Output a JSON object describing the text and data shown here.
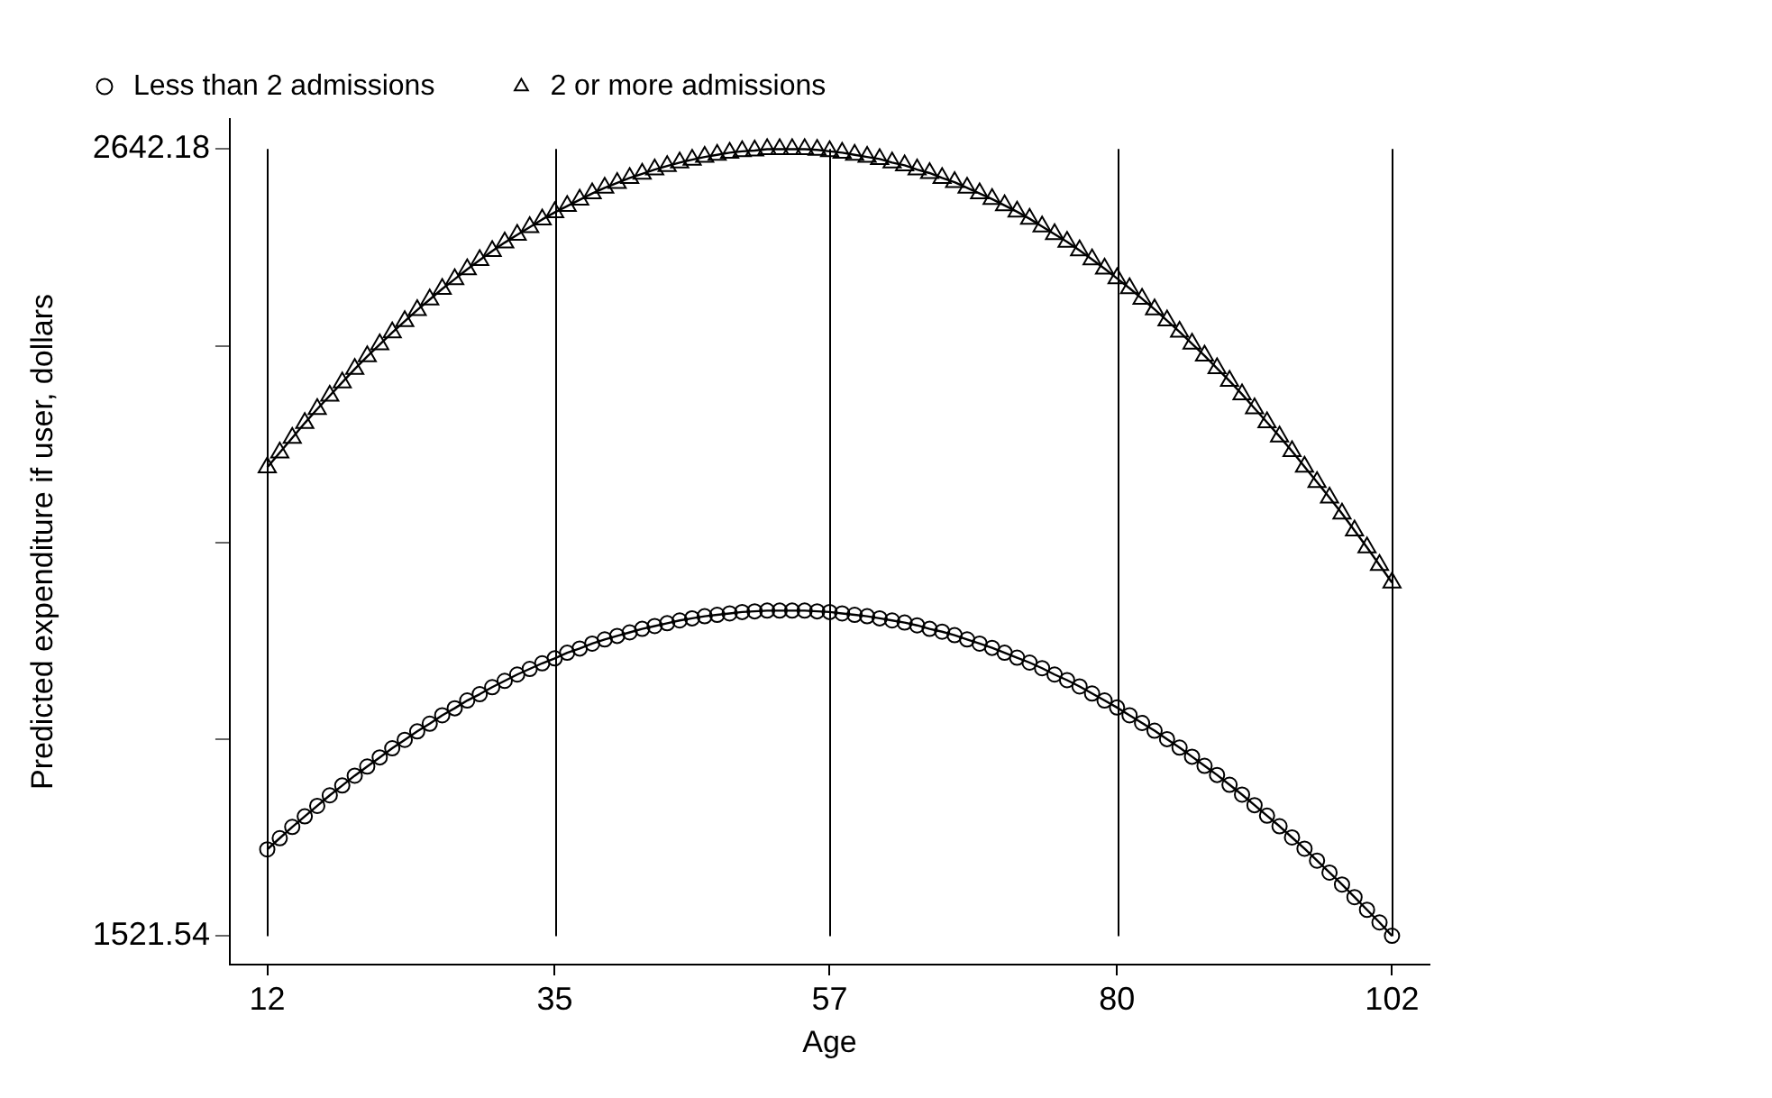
{
  "chart_data": {
    "type": "line",
    "xlabel": "Age",
    "ylabel": "Predicted expenditure if user, dollars",
    "x": [
      12,
      13,
      14,
      15,
      16,
      17,
      18,
      19,
      20,
      21,
      22,
      23,
      24,
      25,
      26,
      27,
      28,
      29,
      30,
      31,
      32,
      33,
      34,
      35,
      36,
      37,
      38,
      39,
      40,
      41,
      42,
      43,
      44,
      45,
      46,
      47,
      48,
      49,
      50,
      51,
      52,
      53,
      54,
      55,
      56,
      57,
      58,
      59,
      60,
      61,
      62,
      63,
      64,
      65,
      66,
      67,
      68,
      69,
      70,
      71,
      72,
      73,
      74,
      75,
      76,
      77,
      78,
      79,
      80,
      81,
      82,
      83,
      84,
      85,
      86,
      87,
      88,
      89,
      90,
      91,
      92,
      93,
      94,
      95,
      96,
      97,
      98,
      99,
      100,
      101,
      102
    ],
    "series": [
      {
        "name": "Less than 2 admissions",
        "color": "#000000",
        "marker": "circle",
        "values": [
          1645,
          1661,
          1677,
          1692,
          1707,
          1722,
          1736,
          1750,
          1763,
          1776,
          1789,
          1801,
          1813,
          1824,
          1836,
          1846,
          1857,
          1866,
          1876,
          1885,
          1894,
          1902,
          1910,
          1917,
          1925,
          1931,
          1938,
          1944,
          1949,
          1954,
          1959,
          1963,
          1967,
          1971,
          1974,
          1977,
          1979,
          1981,
          1983,
          1984,
          1985,
          1985,
          1985,
          1985,
          1984,
          1983,
          1981,
          1979,
          1977,
          1974,
          1971,
          1968,
          1964,
          1959,
          1955,
          1950,
          1944,
          1938,
          1932,
          1925,
          1918,
          1911,
          1903,
          1894,
          1886,
          1877,
          1867,
          1857,
          1847,
          1836,
          1825,
          1814,
          1802,
          1790,
          1777,
          1764,
          1751,
          1737,
          1723,
          1708,
          1693,
          1678,
          1662,
          1646,
          1629,
          1612,
          1595,
          1577,
          1559,
          1541,
          1522
        ]
      },
      {
        "name": "2 or more admissions",
        "color": "#000000",
        "marker": "triangle",
        "values": [
          2189,
          2210,
          2231,
          2252,
          2272,
          2291,
          2310,
          2329,
          2347,
          2364,
          2381,
          2397,
          2413,
          2428,
          2443,
          2457,
          2471,
          2484,
          2497,
          2509,
          2520,
          2531,
          2542,
          2552,
          2561,
          2570,
          2579,
          2587,
          2594,
          2601,
          2607,
          2613,
          2618,
          2623,
          2627,
          2631,
          2634,
          2637,
          2639,
          2640,
          2642,
          2642,
          2642,
          2642,
          2641,
          2639,
          2637,
          2634,
          2631,
          2628,
          2623,
          2619,
          2613,
          2608,
          2601,
          2595,
          2587,
          2579,
          2571,
          2562,
          2553,
          2543,
          2532,
          2521,
          2510,
          2498,
          2485,
          2472,
          2458,
          2444,
          2429,
          2414,
          2398,
          2382,
          2365,
          2348,
          2330,
          2312,
          2293,
          2273,
          2253,
          2233,
          2212,
          2190,
          2168,
          2146,
          2123,
          2099,
          2075,
          2050,
          2025
        ]
      }
    ],
    "xlim": [
      9,
      105
    ],
    "xticks": [
      12,
      35,
      57,
      80,
      102
    ],
    "ylim": [
      1481,
      2685
    ],
    "yticks": [
      1521.54,
      {
        "value": 1801.7,
        "label": null
      },
      {
        "value": 2081.86,
        "label": null
      },
      {
        "value": 2362.02,
        "label": null
      },
      2642.18
    ],
    "grid": "x",
    "legend": "top",
    "line_style": "solid"
  }
}
